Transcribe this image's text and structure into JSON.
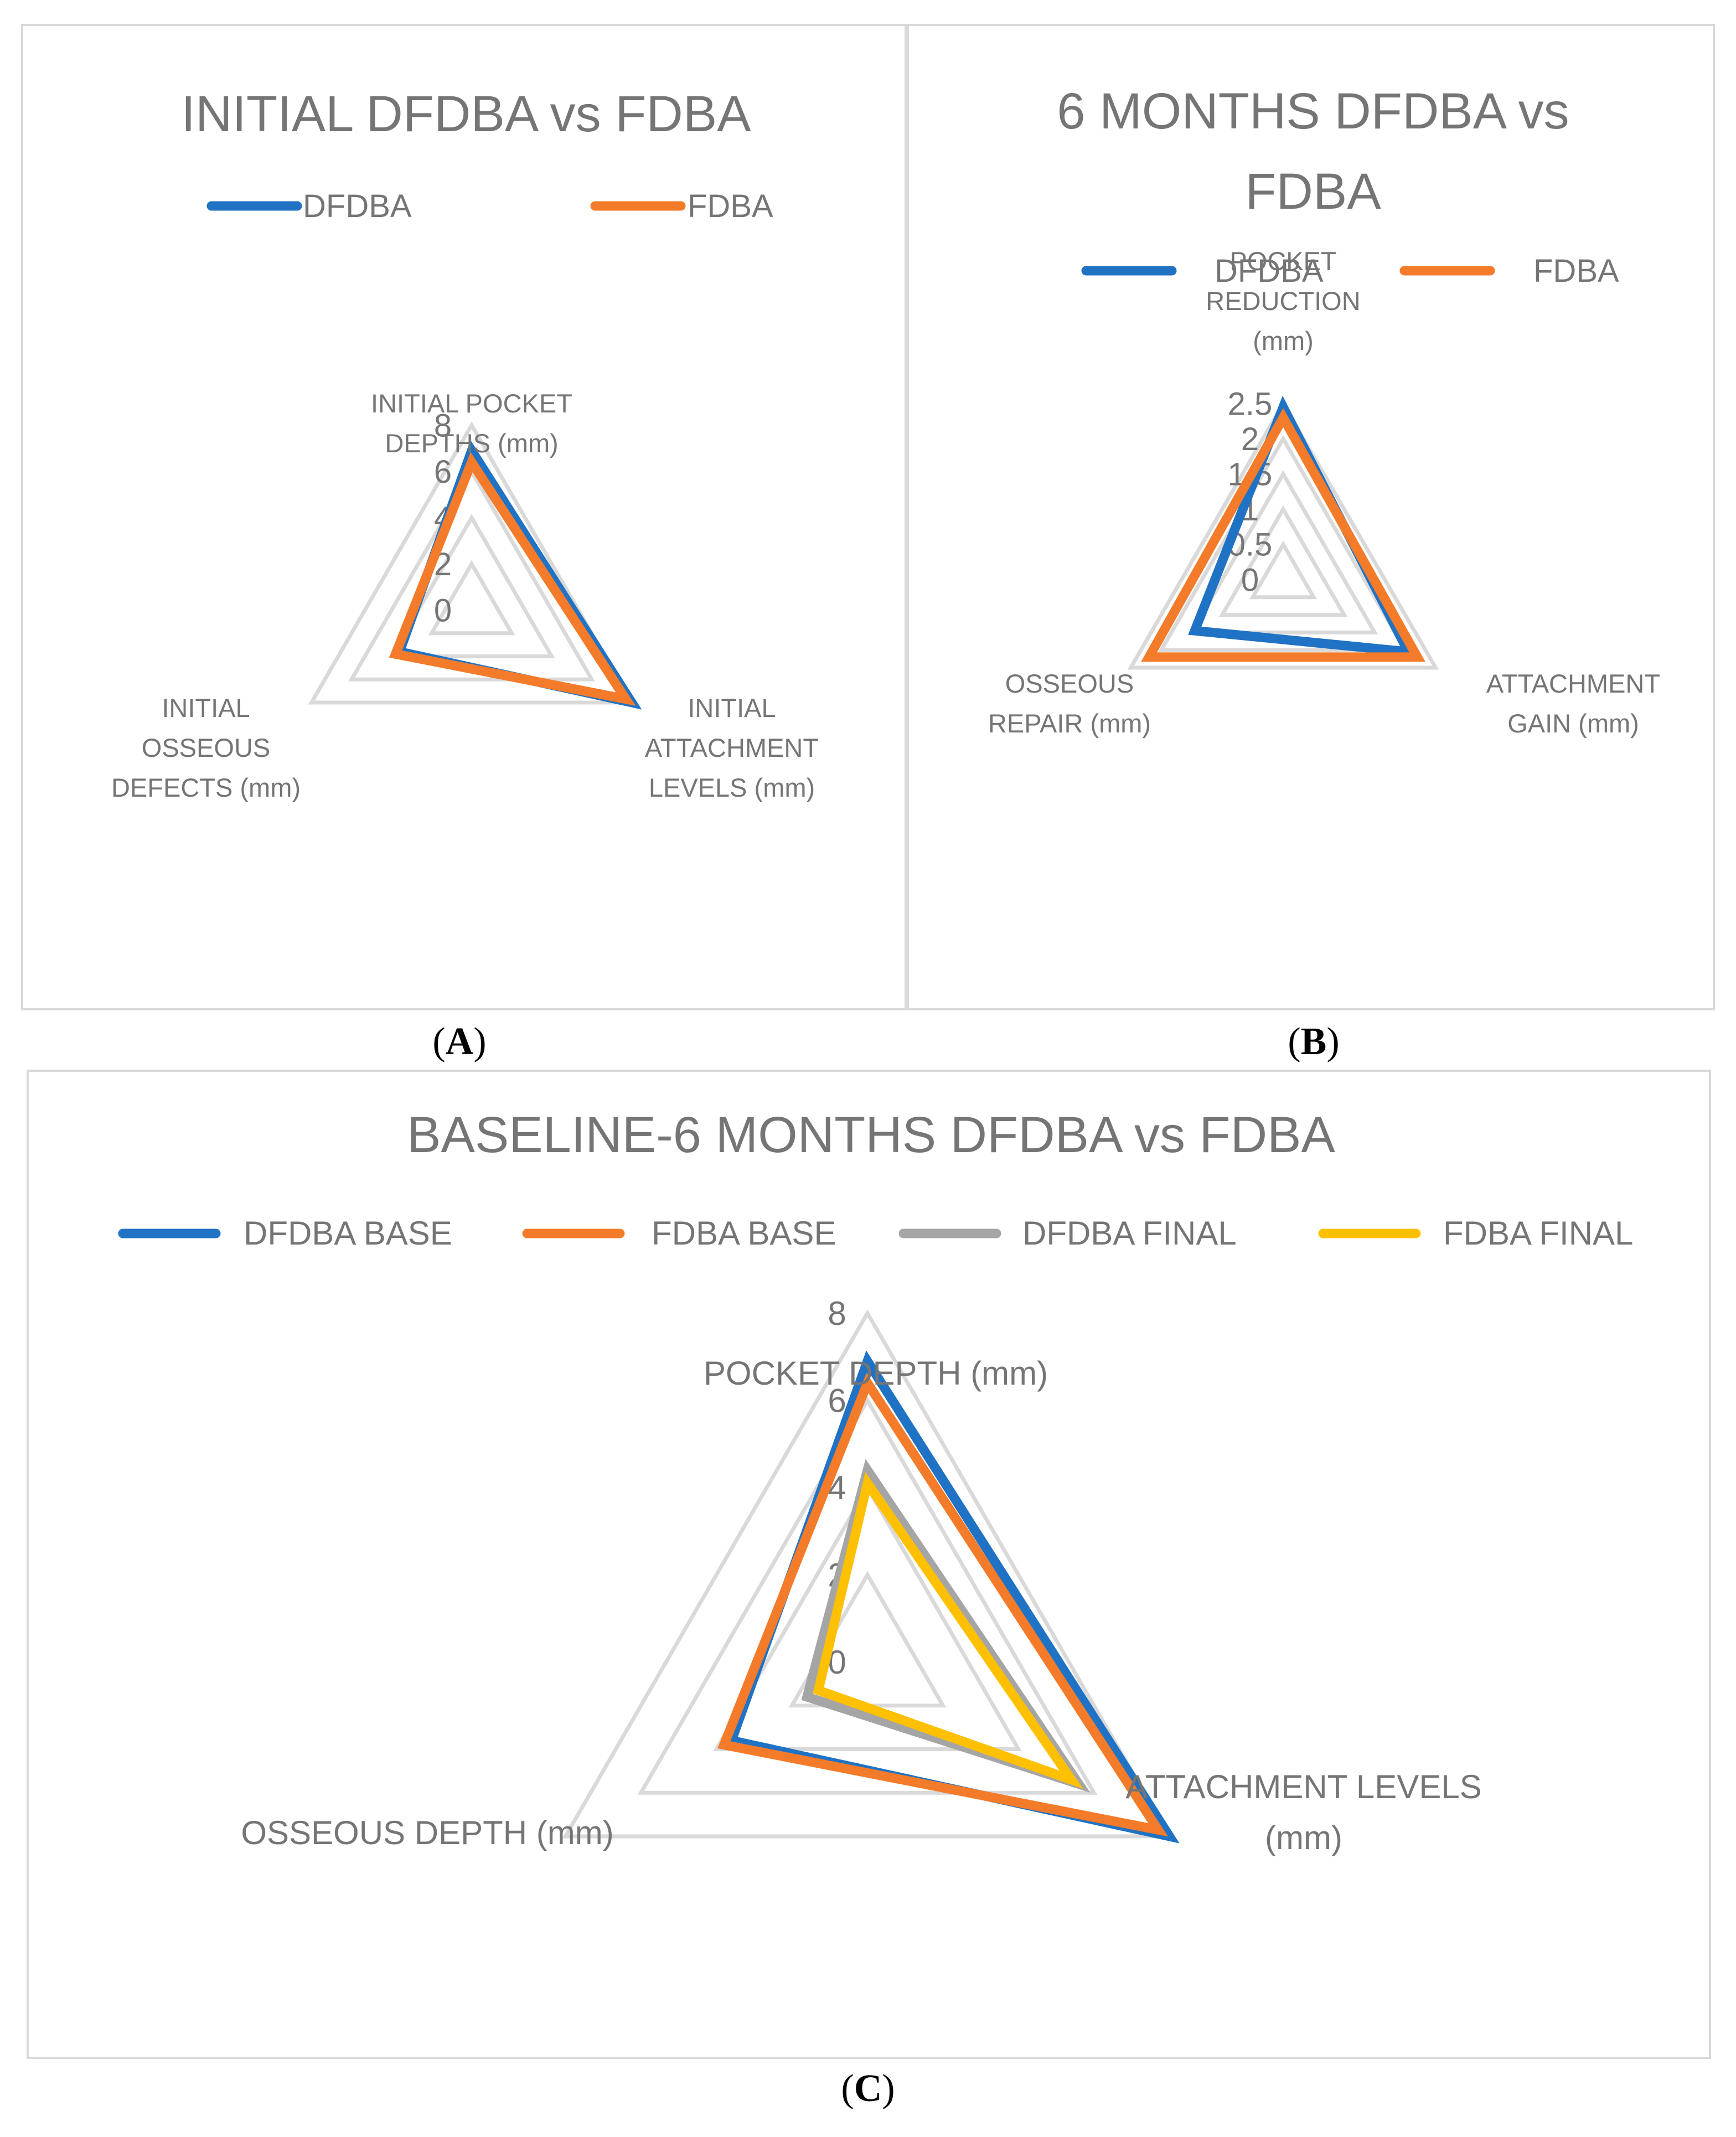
{
  "captions": {
    "a": "A",
    "b": "B",
    "c": "C"
  },
  "colors": {
    "DFDBA": "#1f72c4",
    "FDBA": "#f47b2a",
    "DFDBA FINAL": "#a5a5a5",
    "FDBA FINAL": "#ffc000",
    "grid": "#d9d9d9",
    "text": "#757575"
  },
  "chart_data": [
    {
      "type": "radar",
      "title": "INITIAL DFDBA vs FDBA",
      "axes": [
        "INITIAL POCKET DEPTHS  (mm)",
        "INITIAL ATTACHMENT LEVELS  (mm)",
        "INITIAL OSSEOUS DEFECTS  (mm)"
      ],
      "axis_label_lines": [
        [
          "INITIAL POCKET",
          "DEPTHS  (mm)"
        ],
        [
          "INITIAL",
          "ATTACHMENT",
          "LEVELS  (mm)"
        ],
        [
          "INITIAL",
          "OSSEOUS",
          "DEFECTS  (mm)"
        ]
      ],
      "ticks": [
        0,
        2,
        4,
        6,
        8
      ],
      "rmax": 8,
      "legend_position": "top",
      "series": [
        {
          "name": "DFDBA",
          "values": [
            6.9,
            8.0,
            3.6
          ]
        },
        {
          "name": "FDBA",
          "values": [
            6.4,
            7.7,
            3.8
          ]
        }
      ]
    },
    {
      "type": "radar",
      "title": "6 MONTHS DFDBA vs FDBA",
      "title_lines": [
        "6 MONTHS DFDBA vs",
        "FDBA"
      ],
      "axes": [
        "POCKET REDUCTION (mm)",
        "ATTACHMENT GAIN (mm)",
        "OSSEOUS REPAIR (mm)"
      ],
      "axis_label_lines": [
        [
          "POCKET",
          "REDUCTION",
          "(mm)"
        ],
        [
          "ATTACHMENT",
          "GAIN (mm)"
        ],
        [
          "OSSEOUS",
          "REPAIR (mm)"
        ]
      ],
      "ticks": [
        0,
        0.5,
        1,
        1.5,
        2,
        2.5
      ],
      "tick_labels": [
        "0",
        "0.5",
        "1",
        "1.5",
        "2",
        "2.5"
      ],
      "rmax": 2.5,
      "legend_position": "top",
      "series": [
        {
          "name": "DFDBA",
          "values": [
            2.45,
            2.05,
            1.45
          ]
        },
        {
          "name": "FDBA",
          "values": [
            2.3,
            2.2,
            2.2
          ]
        }
      ]
    },
    {
      "type": "radar",
      "title": "BASELINE-6 MONTHS DFDBA vs FDBA",
      "axes": [
        "POCKET DEPTH  (mm)",
        "ATTACHMENT LEVELS (mm)",
        "OSSEOUS DEPTH (mm)"
      ],
      "axis_label_lines": [
        [
          "POCKET DEPTH  (mm)"
        ],
        [
          "ATTACHMENT LEVELS",
          "(mm)"
        ],
        [
          "OSSEOUS DEPTH (mm)"
        ]
      ],
      "ticks": [
        0,
        2,
        4,
        6,
        8
      ],
      "rmax": 8,
      "legend_position": "top",
      "series": [
        {
          "name": "DFDBA BASE",
          "values": [
            6.9,
            8.0,
            3.6
          ]
        },
        {
          "name": "FDBA BASE",
          "values": [
            6.4,
            7.7,
            3.8
          ]
        },
        {
          "name": "DFDBA FINAL",
          "values": [
            4.4,
            5.6,
            1.6
          ]
        },
        {
          "name": "FDBA FINAL",
          "values": [
            4.1,
            5.4,
            1.3
          ]
        }
      ]
    }
  ]
}
